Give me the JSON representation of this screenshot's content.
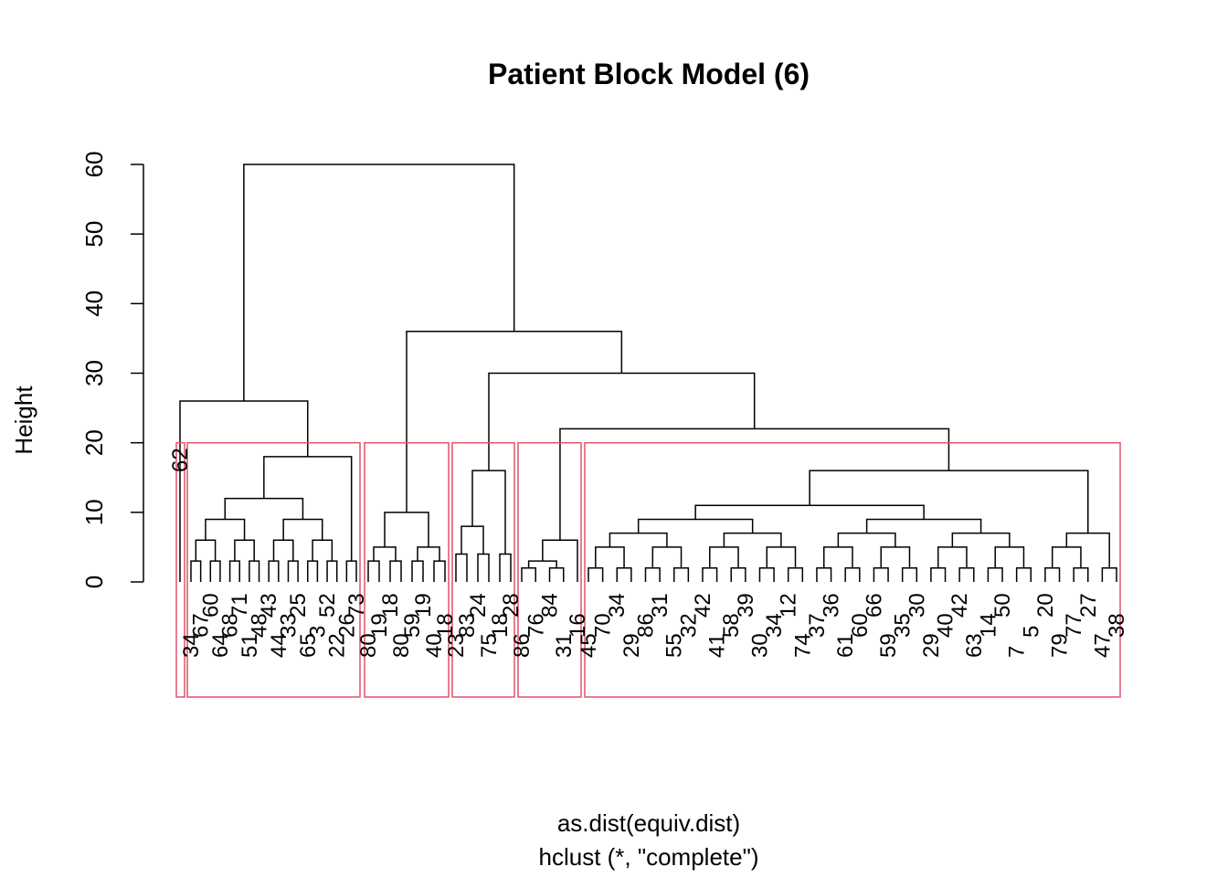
{
  "chart_data": {
    "type": "dendrogram",
    "title": "Patient Block Model (6)",
    "ylabel": "Height",
    "xlabel": "as.dist(equiv.dist)",
    "sub": "hclust (*, \"complete\")",
    "ylim": [
      0,
      60
    ],
    "yticks": [
      "0",
      "10",
      "20",
      "30",
      "40",
      "50",
      "60"
    ],
    "cut_height": 20,
    "cluster_box_color": "#DF536B",
    "line_color": "#000000",
    "root_height": 60,
    "main_branches": [
      {
        "name": "left",
        "height": 26
      },
      {
        "name": "right",
        "height": 36
      }
    ],
    "clusters": [
      {
        "id": 1,
        "merge_height": 0,
        "visible_labels": [
          "62"
        ]
      },
      {
        "id": 2,
        "merge_height": 18,
        "visible_labels": [
          "34",
          "67",
          "60",
          "64",
          "68",
          "71",
          "51",
          "48",
          "43",
          "44",
          "33",
          "25",
          "65",
          "3",
          "52",
          "22",
          "26",
          "73"
        ]
      },
      {
        "id": 3,
        "merge_height": 10,
        "visible_labels": [
          "80",
          "19",
          "18",
          "80",
          "59",
          "19",
          "40",
          "18"
        ]
      },
      {
        "id": 4,
        "merge_height": 16,
        "visible_labels": [
          "23",
          "83",
          "24",
          "75",
          "18",
          "28"
        ]
      },
      {
        "id": 5,
        "merge_height": 6,
        "visible_labels": [
          "86",
          "76",
          "84",
          "31",
          "16"
        ]
      },
      {
        "id": 6,
        "merge_height": 16,
        "visible_labels": [
          "45",
          "70",
          "34",
          "29",
          "86",
          "31",
          "55",
          "32",
          "42",
          "41",
          "58",
          "39",
          "30",
          "34",
          "12",
          "74",
          "37",
          "36",
          "61",
          "60",
          "66",
          "59",
          "35",
          "30",
          "29",
          "40",
          "42",
          "63",
          "14",
          "50",
          "7",
          "5",
          "20",
          "79",
          "77",
          "27",
          "47",
          "38"
        ]
      }
    ]
  }
}
